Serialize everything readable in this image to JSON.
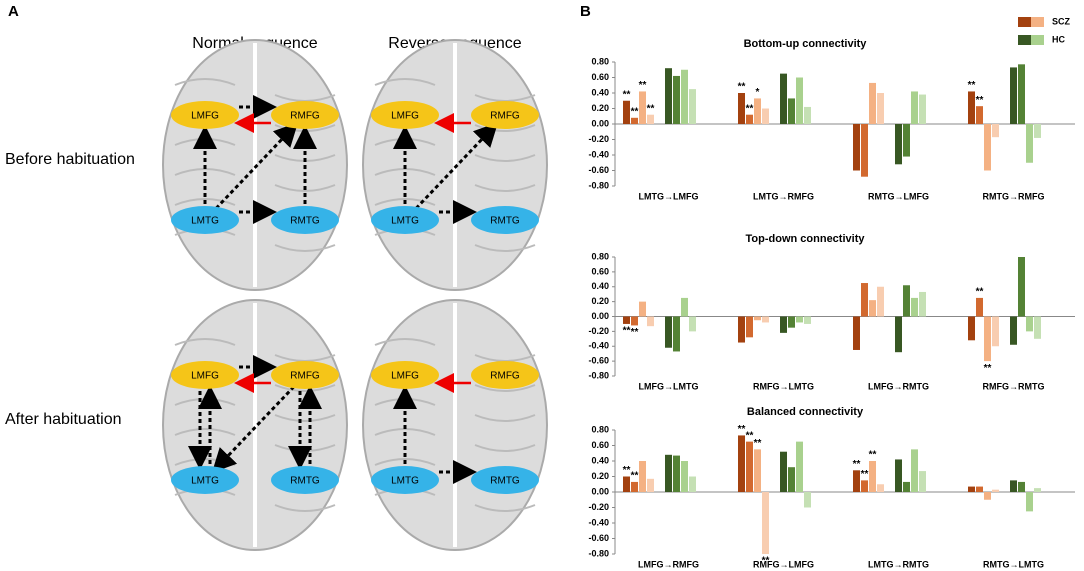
{
  "panel_a": {
    "label": "A",
    "columns": [
      "Normal sequence",
      "Reverse sequence"
    ],
    "rows": [
      "Before habituation",
      "After habituation"
    ],
    "nodes": [
      "LMFG",
      "RMFG",
      "LMTG",
      "RMTG"
    ]
  },
  "panel_b": {
    "label": "B"
  },
  "chart_data": [
    {
      "type": "bar",
      "title": "Bottom-up connectivity",
      "categories": [
        "LMTG→LMFG",
        "LMTG→RMFG",
        "RMTG→LMFG",
        "RMTG→RMFG"
      ],
      "ylim": [
        -0.8,
        0.8
      ],
      "yticks": [
        {
          "value": 0.8,
          "label": "0.80"
        },
        {
          "value": 0.6,
          "label": "0.60"
        },
        {
          "value": 0.4,
          "label": "0.40"
        },
        {
          "value": 0.2,
          "label": "0.20"
        },
        {
          "value": 0,
          "label": "0.00"
        },
        {
          "value": -0.2,
          "label": "-0.20"
        },
        {
          "value": -0.4,
          "label": "-0.40"
        },
        {
          "value": -0.6,
          "label": "-0.60"
        },
        {
          "value": -0.8,
          "label": "-0.80"
        }
      ],
      "series": [
        {
          "name": "SCZ",
          "colors": [
            "#a3410f",
            "#d2692f",
            "#f4b183",
            "#f8cdb0"
          ],
          "values": [
            [
              0.3,
              0.08,
              0.42,
              0.12
            ],
            [
              0.4,
              0.12,
              0.33,
              0.2
            ],
            [
              -0.6,
              -0.68,
              0.53,
              0.4
            ],
            [
              0.42,
              0.23,
              -0.6,
              -0.17
            ]
          ],
          "stars": [
            [
              "**",
              "**",
              "**",
              "**"
            ],
            [
              "**",
              "**",
              "*",
              null
            ],
            [
              null,
              null,
              null,
              null
            ],
            [
              "**",
              "**",
              null,
              null
            ]
          ]
        },
        {
          "name": "HC",
          "colors": [
            "#385723",
            "#548235",
            "#a9d18e",
            "#c5e0b4"
          ],
          "values": [
            [
              0.72,
              0.62,
              0.7,
              0.45
            ],
            [
              0.65,
              0.33,
              0.6,
              0.22
            ],
            [
              -0.52,
              -0.42,
              0.42,
              0.38
            ],
            [
              0.73,
              0.77,
              -0.5,
              -0.18
            ]
          ]
        }
      ]
    },
    {
      "type": "bar",
      "title": "Top-down connectivity",
      "categories": [
        "LMFG→LMTG",
        "RMFG→LMTG",
        "LMFG→RMTG",
        "RMFG→RMTG"
      ],
      "ylim": [
        -0.8,
        0.8
      ],
      "yticks": [
        {
          "value": 0.8,
          "label": "0.80"
        },
        {
          "value": 0.6,
          "label": "0.60"
        },
        {
          "value": 0.4,
          "label": "0.40"
        },
        {
          "value": 0.2,
          "label": "0.20"
        },
        {
          "value": 0,
          "label": "0.00"
        },
        {
          "value": -0.2,
          "label": "-0.20"
        },
        {
          "value": -0.4,
          "label": "-0.40"
        },
        {
          "value": -0.6,
          "label": "-0.60"
        },
        {
          "value": -0.8,
          "label": "-0.80"
        }
      ],
      "series": [
        {
          "name": "SCZ",
          "colors": [
            "#a3410f",
            "#d2692f",
            "#f4b183",
            "#f8cdb0"
          ],
          "values": [
            [
              -0.1,
              -0.12,
              0.2,
              -0.13
            ],
            [
              -0.35,
              -0.28,
              -0.05,
              -0.08
            ],
            [
              -0.45,
              0.45,
              0.22,
              0.4
            ],
            [
              -0.32,
              0.25,
              -0.6,
              -0.4
            ]
          ],
          "stars": [
            [
              "**",
              "**",
              null,
              null
            ],
            [
              null,
              null,
              null,
              null
            ],
            [
              null,
              null,
              null,
              null
            ],
            [
              null,
              "**",
              "**",
              null
            ]
          ]
        },
        {
          "name": "HC",
          "colors": [
            "#385723",
            "#548235",
            "#a9d18e",
            "#c5e0b4"
          ],
          "values": [
            [
              -0.42,
              -0.47,
              0.25,
              -0.2
            ],
            [
              -0.22,
              -0.15,
              -0.08,
              -0.1
            ],
            [
              -0.48,
              0.42,
              0.25,
              0.33
            ],
            [
              -0.38,
              0.8,
              -0.2,
              -0.3
            ]
          ]
        }
      ]
    },
    {
      "type": "bar",
      "title": "Balanced connectivity",
      "categories": [
        "LMFG→RMFG",
        "RMFG→LMFG",
        "LMTG→RMTG",
        "RMTG→LMTG"
      ],
      "ylim": [
        -0.8,
        0.8
      ],
      "yticks": [
        {
          "value": 0.8,
          "label": "0.80"
        },
        {
          "value": 0.6,
          "label": "0.60"
        },
        {
          "value": 0.4,
          "label": "0.40"
        },
        {
          "value": 0.2,
          "label": "0.20"
        },
        {
          "value": 0,
          "label": "0.00"
        },
        {
          "value": -0.2,
          "label": "-0.20"
        },
        {
          "value": -0.4,
          "label": "-0.40"
        },
        {
          "value": -0.6,
          "label": "-0.60"
        },
        {
          "value": -0.8,
          "label": "-0.80"
        }
      ],
      "series": [
        {
          "name": "SCZ",
          "colors": [
            "#a3410f",
            "#d2692f",
            "#f4b183",
            "#f8cdb0"
          ],
          "values": [
            [
              0.2,
              0.13,
              0.4,
              0.17
            ],
            [
              0.73,
              0.65,
              0.55,
              -0.8
            ],
            [
              0.28,
              0.15,
              0.4,
              0.1
            ],
            [
              0.07,
              0.07,
              -0.1,
              0.03
            ]
          ],
          "stars": [
            [
              "**",
              "**",
              null,
              null
            ],
            [
              "**",
              "**",
              "**",
              "**"
            ],
            [
              "**",
              "**",
              "**",
              null
            ],
            [
              null,
              null,
              null,
              null
            ]
          ]
        },
        {
          "name": "HC",
          "colors": [
            "#385723",
            "#548235",
            "#a9d18e",
            "#c5e0b4"
          ],
          "values": [
            [
              0.48,
              0.47,
              0.4,
              0.2
            ],
            [
              0.52,
              0.32,
              0.65,
              -0.2
            ],
            [
              0.42,
              0.13,
              0.55,
              0.27
            ],
            [
              0.15,
              0.13,
              -0.25,
              0.05
            ]
          ]
        }
      ]
    }
  ]
}
